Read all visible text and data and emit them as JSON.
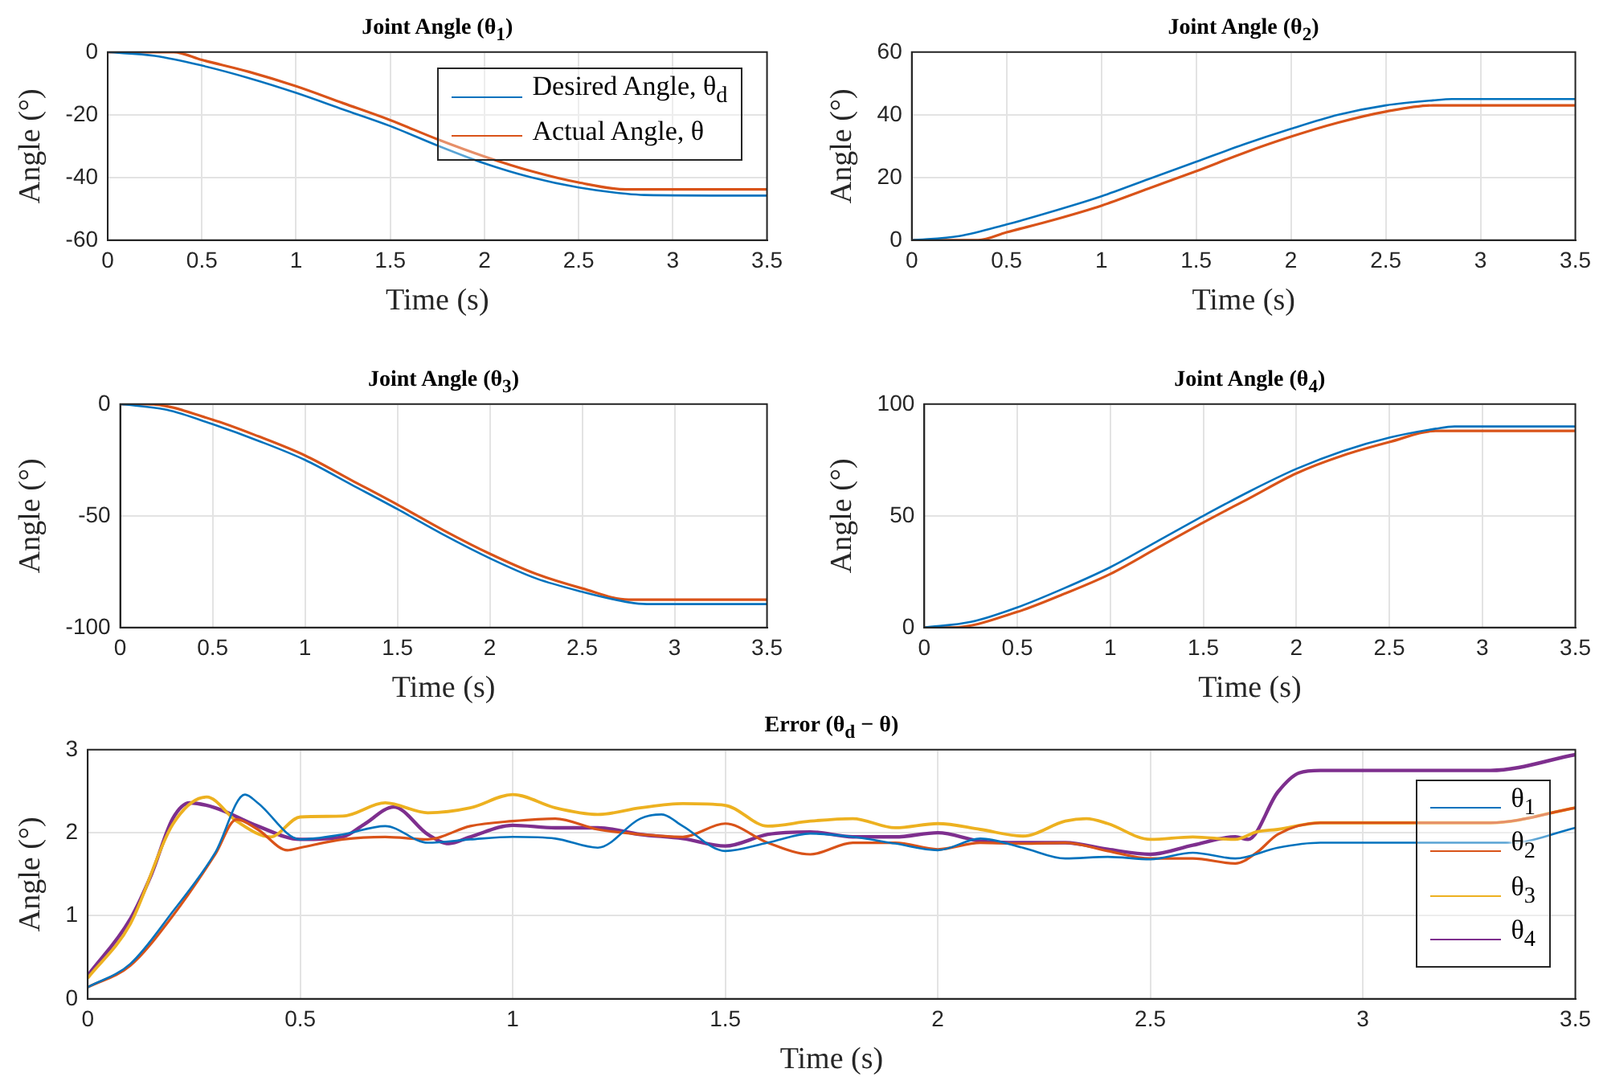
{
  "chart_data": [
    {
      "type": "line",
      "title": "Joint Angle (θ$_{1}$)",
      "xlabel": "Time (s)",
      "ylabel": "Angle (°)",
      "xlim": [
        0,
        3.5
      ],
      "xticks": [
        0,
        0.5,
        1,
        1.5,
        2,
        2.5,
        3,
        3.5
      ],
      "ylim": [
        -60,
        0
      ],
      "yticks": [
        -60,
        -40,
        -20,
        0
      ],
      "grid": true,
      "legend": "top right",
      "series": [
        {
          "name": "Desired Angle, θ$_{d}$",
          "color": "#0072bd",
          "x": [
            0,
            0.25,
            0.5,
            0.75,
            1,
            1.25,
            1.5,
            1.75,
            2,
            2.25,
            2.5,
            2.75,
            2.85,
            3.5
          ],
          "values": [
            0,
            -1.2,
            -4.3,
            -8.3,
            -13,
            -18.3,
            -23.6,
            -29.8,
            -35.5,
            -40,
            -43.2,
            -45.2,
            -45.6,
            -45.8
          ]
        },
        {
          "name": "Actual Angle, θ",
          "color": "#d95319",
          "x": [
            0,
            0.35,
            0.5,
            0.75,
            1,
            1.25,
            1.5,
            1.75,
            2,
            2.25,
            2.5,
            2.75,
            3.5
          ],
          "values": [
            0,
            0,
            -2.5,
            -6.3,
            -10.9,
            -16.3,
            -21.7,
            -27.8,
            -33.3,
            -38,
            -41.6,
            -43.8,
            -43.8
          ]
        }
      ]
    },
    {
      "type": "line",
      "title": "Joint Angle (θ$_{2}$)",
      "xlabel": "Time (s)",
      "ylabel": "Angle (°)",
      "xlim": [
        0,
        3.5
      ],
      "xticks": [
        0,
        0.5,
        1,
        1.5,
        2,
        2.5,
        3,
        3.5
      ],
      "ylim": [
        0,
        60
      ],
      "yticks": [
        0,
        20,
        40,
        60
      ],
      "grid": true,
      "series": [
        {
          "color": "#0072bd",
          "x": [
            0,
            0.25,
            0.5,
            0.75,
            1,
            1.25,
            1.5,
            1.75,
            2,
            2.25,
            2.5,
            2.75,
            2.85,
            3.5
          ],
          "values": [
            0,
            1.3,
            5,
            9.3,
            14,
            19.5,
            25,
            30.5,
            35.5,
            40,
            43,
            44.6,
            45,
            45
          ]
        },
        {
          "color": "#d95319",
          "x": [
            0,
            0.35,
            0.5,
            0.75,
            1,
            1.25,
            1.5,
            1.75,
            2,
            2.25,
            2.5,
            2.75,
            3.5
          ],
          "values": [
            0,
            0,
            2.5,
            6.5,
            11,
            16.5,
            22,
            27.8,
            33,
            37.5,
            41,
            43,
            43
          ]
        }
      ]
    },
    {
      "type": "line",
      "title": "Joint Angle (θ$_{3}$)",
      "xlabel": "Time (s)",
      "ylabel": "Angle (°)",
      "xlim": [
        0,
        3.5
      ],
      "xticks": [
        0,
        0.5,
        1,
        1.5,
        2,
        2.5,
        3,
        3.5
      ],
      "ylim": [
        -100,
        0
      ],
      "yticks": [
        -100,
        -50,
        0
      ],
      "grid": true,
      "series": [
        {
          "color": "#0072bd",
          "x": [
            0,
            0.25,
            0.5,
            0.75,
            1,
            1.25,
            1.5,
            1.75,
            2,
            2.25,
            2.5,
            2.75,
            2.85,
            3.5
          ],
          "values": [
            0,
            -2.5,
            -9,
            -16.5,
            -25,
            -36,
            -47,
            -58.5,
            -69,
            -78,
            -84,
            -88.7,
            -89.5,
            -89.5
          ]
        },
        {
          "color": "#d95319",
          "x": [
            0,
            0.15,
            0.5,
            0.75,
            1,
            1.25,
            1.5,
            1.75,
            2,
            2.25,
            2.5,
            2.75,
            3.5
          ],
          "values": [
            0,
            0,
            -7,
            -14.5,
            -23,
            -34,
            -45,
            -56.5,
            -67,
            -76,
            -82.5,
            -87.5,
            -87.5
          ]
        }
      ]
    },
    {
      "type": "line",
      "title": "Joint Angle (θ$_{4}$)",
      "xlabel": "Time (s)",
      "ylabel": "Angle (°)",
      "xlim": [
        0,
        3.5
      ],
      "xticks": [
        0,
        0.5,
        1,
        1.5,
        2,
        2.5,
        3,
        3.5
      ],
      "ylim": [
        0,
        100
      ],
      "yticks": [
        0,
        50,
        100
      ],
      "grid": true,
      "series": [
        {
          "color": "#0072bd",
          "x": [
            0,
            0.25,
            0.5,
            0.75,
            1,
            1.25,
            1.5,
            1.75,
            2,
            2.25,
            2.5,
            2.75,
            2.85,
            3.5
          ],
          "values": [
            0,
            2.5,
            9,
            17.5,
            27,
            38.5,
            50,
            61,
            71,
            79,
            85,
            89,
            90,
            90
          ]
        },
        {
          "color": "#d95319",
          "x": [
            0,
            0.15,
            0.5,
            0.75,
            1,
            1.25,
            1.5,
            1.75,
            2,
            2.25,
            2.5,
            2.75,
            3.5
          ],
          "values": [
            0,
            0,
            7,
            15,
            24,
            35.5,
            47,
            58,
            69,
            77,
            83,
            88,
            88
          ]
        }
      ]
    },
    {
      "type": "line",
      "title": "Error (θ$_{d}$ − θ)",
      "xlabel": "Time (s)",
      "ylabel": "Angle (°)",
      "xlim": [
        0,
        3.5
      ],
      "xticks": [
        0,
        0.5,
        1,
        1.5,
        2,
        2.5,
        3,
        3.5
      ],
      "ylim": [
        0,
        3
      ],
      "yticks": [
        0,
        1,
        2,
        3
      ],
      "grid": true,
      "legend": "right",
      "series": [
        {
          "name": "θ$_{1}$",
          "color": "#0072bd",
          "x": [
            0,
            0.1,
            0.2,
            0.3,
            0.37,
            0.4,
            0.5,
            0.6,
            0.7,
            0.8,
            0.9,
            1.0,
            1.1,
            1.2,
            1.3,
            1.35,
            1.4,
            1.5,
            1.6,
            1.7,
            1.8,
            1.9,
            2.0,
            2.1,
            2.2,
            2.3,
            2.4,
            2.5,
            2.6,
            2.7,
            2.8,
            2.9,
            3.0,
            3.35,
            3.5
          ],
          "values": [
            0.14,
            0.42,
            1.05,
            1.76,
            2.46,
            2.36,
            1.92,
            1.98,
            2.08,
            1.88,
            1.92,
            1.95,
            1.93,
            1.82,
            2.17,
            2.22,
            2.08,
            1.78,
            1.88,
            1.99,
            1.95,
            1.87,
            1.79,
            1.93,
            1.82,
            1.69,
            1.71,
            1.68,
            1.76,
            1.69,
            1.82,
            1.88,
            1.88,
            1.88,
            2.06
          ]
        },
        {
          "name": "θ$_{2}$",
          "color": "#d95319",
          "x": [
            0,
            0.1,
            0.2,
            0.3,
            0.35,
            0.4,
            0.47,
            0.5,
            0.6,
            0.7,
            0.8,
            0.9,
            1.0,
            1.1,
            1.2,
            1.3,
            1.4,
            1.5,
            1.6,
            1.7,
            1.8,
            1.9,
            2.0,
            2.1,
            2.2,
            2.3,
            2.4,
            2.5,
            2.6,
            2.7,
            2.75,
            2.8,
            2.9,
            3.3,
            3.5
          ],
          "values": [
            0.14,
            0.4,
            1.0,
            1.74,
            2.16,
            2.04,
            1.79,
            1.82,
            1.92,
            1.95,
            1.92,
            2.08,
            2.14,
            2.17,
            2.04,
            1.98,
            1.95,
            2.11,
            1.88,
            1.74,
            1.88,
            1.88,
            1.8,
            1.88,
            1.87,
            1.88,
            1.78,
            1.69,
            1.69,
            1.63,
            1.76,
            1.98,
            2.12,
            2.12,
            2.3
          ]
        },
        {
          "name": "θ$_{3}$",
          "color": "#edb120",
          "x": [
            0,
            0.1,
            0.2,
            0.28,
            0.35,
            0.43,
            0.5,
            0.6,
            0.7,
            0.8,
            0.9,
            1.0,
            1.1,
            1.2,
            1.3,
            1.4,
            1.5,
            1.6,
            1.7,
            1.8,
            1.9,
            2.0,
            2.1,
            2.2,
            2.3,
            2.35,
            2.4,
            2.5,
            2.6,
            2.7,
            2.75,
            2.8,
            2.9,
            3.3,
            3.5
          ],
          "values": [
            0.25,
            0.9,
            2.1,
            2.43,
            2.14,
            1.95,
            2.19,
            2.2,
            2.36,
            2.24,
            2.3,
            2.46,
            2.3,
            2.22,
            2.3,
            2.35,
            2.33,
            2.08,
            2.14,
            2.17,
            2.06,
            2.11,
            2.04,
            1.96,
            2.14,
            2.17,
            2.11,
            1.92,
            1.95,
            1.92,
            2.01,
            2.04,
            2.12,
            2.12,
            2.3
          ]
        },
        {
          "name": "θ$_{4}$",
          "color": "#7e2f8e",
          "x": [
            0,
            0.1,
            0.15,
            0.2,
            0.24,
            0.3,
            0.4,
            0.5,
            0.6,
            0.65,
            0.72,
            0.8,
            0.85,
            0.9,
            1.0,
            1.1,
            1.2,
            1.3,
            1.4,
            1.5,
            1.6,
            1.7,
            1.8,
            1.9,
            2.0,
            2.1,
            2.2,
            2.3,
            2.4,
            2.5,
            2.6,
            2.7,
            2.73,
            2.8,
            2.85,
            2.9,
            3.3,
            3.5
          ],
          "values": [
            0.28,
            0.96,
            1.5,
            2.17,
            2.36,
            2.3,
            2.08,
            1.92,
            1.95,
            2.1,
            2.31,
            1.98,
            1.87,
            1.95,
            2.09,
            2.06,
            2.06,
            1.98,
            1.93,
            1.84,
            1.98,
            2.01,
            1.95,
            1.95,
            2.0,
            1.9,
            1.88,
            1.88,
            1.8,
            1.74,
            1.85,
            1.95,
            1.92,
            2.49,
            2.72,
            2.75,
            2.75,
            2.94
          ]
        }
      ]
    }
  ]
}
